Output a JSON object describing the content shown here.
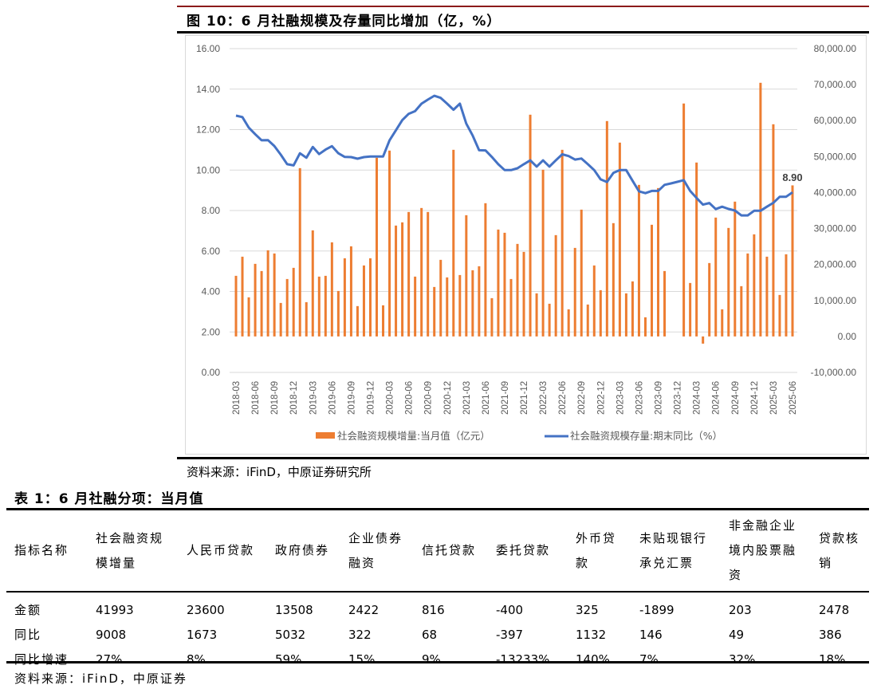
{
  "figure": {
    "title": "图 10：6 月社融规模及存量同比增加（亿，%）",
    "source": "资料来源：iFinD，中原证券研究所"
  },
  "chart_data": {
    "type": "bar+line",
    "title": "图 10：6 月社融规模及存量同比增加（亿，%）",
    "left_axis": {
      "min": 0,
      "max": 16,
      "step": 2,
      "ticks": [
        "0.00",
        "2.00",
        "4.00",
        "6.00",
        "8.00",
        "10.00",
        "12.00",
        "14.00",
        "16.00"
      ]
    },
    "right_axis": {
      "min": -10000,
      "max": 80000,
      "step": 10000,
      "ticks": [
        "-10,000.00",
        "0.00",
        "10,000.00",
        "20,000.00",
        "30,000.00",
        "40,000.00",
        "50,000.00",
        "60,000.00",
        "70,000.00",
        "80,000.00"
      ]
    },
    "x_start": "2018-03",
    "x_count": 88,
    "x_ticks": [
      "2018-03",
      "2018-06",
      "2018-09",
      "2018-12",
      "2019-03",
      "2019-06",
      "2019-09",
      "2019-12",
      "2020-03",
      "2020-06",
      "2020-09",
      "2020-12",
      "2021-03",
      "2021-06",
      "2021-09",
      "2021-12",
      "2022-03",
      "2022-06",
      "2022-09",
      "2022-12",
      "2023-03",
      "2023-06",
      "2023-09",
      "2023-12",
      "2024-03",
      "2024-06",
      "2024-09",
      "2024-12",
      "2025-03",
      "2025-06"
    ],
    "legend_position": "bottom",
    "series": [
      {
        "name": "社会融资规模增量:当月值（亿元）",
        "type": "bar",
        "axis": "right",
        "color": "#ED7D31",
        "values": [
          16850,
          22170,
          10870,
          20180,
          18180,
          23950,
          23060,
          9310,
          15960,
          19070,
          46780,
          9530,
          29490,
          16630,
          16850,
          26160,
          12640,
          21730,
          25050,
          8430,
          19730,
          21730,
          49670,
          8650,
          51660,
          30820,
          31710,
          34590,
          16630,
          35700,
          34590,
          13750,
          21290,
          16410,
          51880,
          17070,
          33700,
          18400,
          19510,
          37030,
          10640,
          29710,
          28820,
          15960,
          25720,
          23500,
          61640,
          11970,
          46340,
          9090,
          28160,
          51880,
          7540,
          24610,
          35250,
          8870,
          19730,
          12860,
          59870,
          31490,
          53880,
          11970,
          15300,
          42130,
          5320,
          31040,
          41240,
          18180,
          null,
          null,
          64750,
          14860,
          48340,
          -2000,
          20400,
          33040,
          7540,
          30160,
          37470,
          13970,
          23060,
          28380,
          70510,
          22170,
          58980,
          11530,
          22840,
          41993
        ]
      },
      {
        "name": "社会融资规模存量:期末同比（%）",
        "type": "line",
        "axis": "left",
        "color": "#4472C4",
        "values": [
          12.69,
          12.62,
          12.1,
          11.77,
          11.47,
          11.48,
          11.19,
          10.76,
          10.29,
          10.23,
          10.83,
          10.61,
          11.14,
          10.79,
          11.01,
          11.18,
          10.83,
          10.65,
          10.64,
          10.56,
          10.64,
          10.67,
          10.67,
          10.67,
          11.47,
          11.97,
          12.47,
          12.78,
          12.91,
          13.28,
          13.48,
          13.67,
          13.57,
          13.28,
          12.98,
          13.28,
          12.3,
          11.7,
          10.98,
          10.97,
          10.65,
          10.29,
          10.0,
          10.0,
          10.09,
          10.29,
          10.48,
          10.17,
          10.48,
          10.17,
          10.48,
          10.78,
          10.69,
          10.52,
          10.57,
          10.29,
          10.0,
          9.54,
          9.41,
          9.86,
          10.0,
          10.0,
          9.47,
          8.95,
          8.86,
          8.97,
          8.97,
          9.27,
          9.34,
          9.42,
          9.5,
          8.97,
          8.62,
          8.29,
          8.37,
          8.07,
          8.19,
          8.08,
          8.0,
          7.76,
          7.76,
          7.99,
          7.99,
          8.19,
          8.38,
          8.68,
          8.68,
          8.9
        ]
      }
    ],
    "annotation": "8.90"
  },
  "table": {
    "title": "表 1：6 月社融分项：当月值",
    "headers": [
      "指标名称",
      "社会融资规模增量",
      "人民币贷款",
      "政府债券",
      "企业债券融资",
      "信托贷款",
      "委托贷款",
      "外币贷款",
      "未贴现银行承兑汇票",
      "非金融企业境内股票融资",
      "贷款核销"
    ],
    "rows": [
      [
        "金额",
        "41993",
        "23600",
        "13508",
        "2422",
        "816",
        "-400",
        "325",
        "-1899",
        "203",
        "2478"
      ],
      [
        "同比",
        "9008",
        "1673",
        "5032",
        "322",
        "68",
        "-397",
        "1132",
        "146",
        "49",
        "386"
      ],
      [
        "同比增速",
        "27%",
        "8%",
        "59%",
        "15%",
        "9%",
        "-13233%",
        "140%",
        "7%",
        "32%",
        "18%"
      ]
    ],
    "source": "资料来源：iFinD，中原证券"
  }
}
